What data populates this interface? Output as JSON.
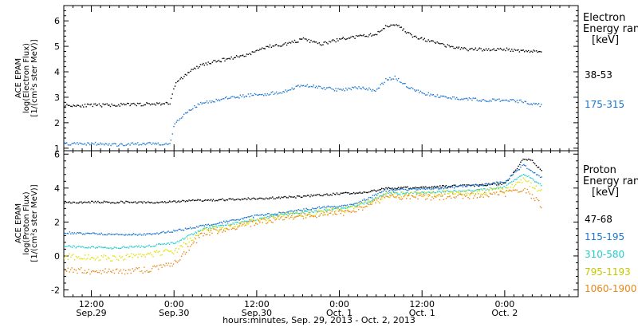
{
  "chart_data": [
    {
      "type": "scatter",
      "panel": "electron",
      "ylabel": [
        "ACE EPAM",
        "log(Electron Flux)",
        "[1/(cm²s ster MeV)]"
      ],
      "ylim": [
        0.9,
        6.6
      ],
      "yticks": [
        1,
        2,
        3,
        4,
        5,
        6
      ],
      "legend_title": [
        "Electron",
        "Energy range",
        "[keV]"
      ],
      "series": [
        {
          "name": "38-53",
          "color": "#000000",
          "points": [
            [
              0,
              2.7
            ],
            [
              6,
              2.7
            ],
            [
              12,
              2.72
            ],
            [
              18,
              2.75
            ],
            [
              23,
              2.78
            ],
            [
              24,
              3.5
            ],
            [
              27,
              4.0
            ],
            [
              30,
              4.3
            ],
            [
              36,
              4.55
            ],
            [
              40,
              4.7
            ],
            [
              44,
              5.0
            ],
            [
              48,
              5.1
            ],
            [
              52,
              5.3
            ],
            [
              56,
              5.1
            ],
            [
              60,
              5.3
            ],
            [
              64,
              5.4
            ],
            [
              68,
              5.5
            ],
            [
              70,
              5.8
            ],
            [
              72,
              5.9
            ],
            [
              76,
              5.4
            ],
            [
              80,
              5.2
            ],
            [
              84,
              5.0
            ],
            [
              88,
              4.9
            ],
            [
              92,
              4.9
            ],
            [
              96,
              4.9
            ],
            [
              100,
              4.85
            ],
            [
              104,
              4.8
            ]
          ]
        },
        {
          "name": "175-315",
          "color": "#1a75d1",
          "points": [
            [
              0,
              1.2
            ],
            [
              6,
              1.2
            ],
            [
              12,
              1.15
            ],
            [
              18,
              1.2
            ],
            [
              23,
              1.2
            ],
            [
              24,
              2.0
            ],
            [
              27,
              2.5
            ],
            [
              30,
              2.8
            ],
            [
              36,
              3.0
            ],
            [
              40,
              3.1
            ],
            [
              44,
              3.15
            ],
            [
              48,
              3.25
            ],
            [
              52,
              3.5
            ],
            [
              56,
              3.4
            ],
            [
              60,
              3.3
            ],
            [
              64,
              3.4
            ],
            [
              68,
              3.3
            ],
            [
              70,
              3.7
            ],
            [
              72,
              3.8
            ],
            [
              76,
              3.3
            ],
            [
              80,
              3.1
            ],
            [
              84,
              3.0
            ],
            [
              88,
              2.95
            ],
            [
              92,
              2.9
            ],
            [
              96,
              2.9
            ],
            [
              100,
              2.85
            ],
            [
              104,
              2.7
            ]
          ]
        }
      ]
    },
    {
      "type": "scatter",
      "panel": "proton",
      "ylabel": [
        "ACE EPAM",
        "log(Proton Flux)",
        "[1/(cm²s ster MeV)]"
      ],
      "ylim": [
        -2.4,
        6.2
      ],
      "yticks": [
        -2,
        0,
        2,
        4,
        6
      ],
      "legend_title": [
        "Proton",
        "Energy range",
        "[keV]"
      ],
      "series": [
        {
          "name": "47-68",
          "color": "#000000",
          "points": [
            [
              0,
              3.2
            ],
            [
              10,
              3.2
            ],
            [
              20,
              3.2
            ],
            [
              30,
              3.3
            ],
            [
              40,
              3.4
            ],
            [
              50,
              3.5
            ],
            [
              60,
              3.7
            ],
            [
              66,
              3.8
            ],
            [
              70,
              4.0
            ],
            [
              80,
              4.1
            ],
            [
              90,
              4.2
            ],
            [
              96,
              4.3
            ],
            [
              98,
              5.0
            ],
            [
              100,
              5.8
            ],
            [
              102,
              5.6
            ],
            [
              104,
              5.0
            ]
          ]
        },
        {
          "name": "115-195",
          "color": "#1a75d1",
          "points": [
            [
              0,
              1.4
            ],
            [
              10,
              1.3
            ],
            [
              18,
              1.3
            ],
            [
              24,
              1.5
            ],
            [
              30,
              1.8
            ],
            [
              36,
              2.1
            ],
            [
              42,
              2.4
            ],
            [
              48,
              2.6
            ],
            [
              56,
              2.9
            ],
            [
              62,
              3.0
            ],
            [
              66,
              3.4
            ],
            [
              70,
              3.9
            ],
            [
              80,
              4.0
            ],
            [
              90,
              4.2
            ],
            [
              96,
              4.4
            ],
            [
              100,
              5.4
            ],
            [
              104,
              4.6
            ]
          ]
        },
        {
          "name": "310-580",
          "color": "#22cccc",
          "points": [
            [
              0,
              0.6
            ],
            [
              10,
              0.5
            ],
            [
              18,
              0.6
            ],
            [
              24,
              0.8
            ],
            [
              30,
              1.6
            ],
            [
              36,
              1.9
            ],
            [
              42,
              2.2
            ],
            [
              48,
              2.5
            ],
            [
              56,
              2.7
            ],
            [
              62,
              2.9
            ],
            [
              66,
              3.2
            ],
            [
              70,
              3.7
            ],
            [
              80,
              3.8
            ],
            [
              90,
              3.9
            ],
            [
              96,
              4.1
            ],
            [
              100,
              4.9
            ],
            [
              104,
              4.2
            ]
          ]
        },
        {
          "name": "795-1193",
          "color": "#e0e000",
          "points": [
            [
              0,
              0.0
            ],
            [
              10,
              -0.1
            ],
            [
              18,
              0.1
            ],
            [
              24,
              0.3
            ],
            [
              30,
              1.5
            ],
            [
              36,
              1.8
            ],
            [
              42,
              2.1
            ],
            [
              48,
              2.4
            ],
            [
              56,
              2.6
            ],
            [
              62,
              2.8
            ],
            [
              66,
              3.1
            ],
            [
              70,
              3.6
            ],
            [
              80,
              3.7
            ],
            [
              90,
              3.8
            ],
            [
              96,
              3.9
            ],
            [
              100,
              4.5
            ],
            [
              104,
              3.8
            ]
          ]
        },
        {
          "name": "1060-1900",
          "color": "#e8871a",
          "points": [
            [
              0,
              -0.8
            ],
            [
              10,
              -0.9
            ],
            [
              18,
              -0.8
            ],
            [
              24,
              -0.4
            ],
            [
              30,
              1.3
            ],
            [
              36,
              1.7
            ],
            [
              42,
              2.0
            ],
            [
              48,
              2.3
            ],
            [
              56,
              2.5
            ],
            [
              62,
              2.6
            ],
            [
              66,
              3.0
            ],
            [
              70,
              3.5
            ],
            [
              80,
              3.5
            ],
            [
              90,
              3.6
            ],
            [
              96,
              3.7
            ],
            [
              100,
              4.0
            ],
            [
              104,
              3.0
            ]
          ]
        }
      ]
    }
  ],
  "x_axis": {
    "xlim": [
      0,
      112
    ],
    "ticks": [
      {
        "x": 6,
        "line1": "12:00",
        "line2": "Sep.29"
      },
      {
        "x": 24,
        "line1": "0:00",
        "line2": "Sep.30"
      },
      {
        "x": 42,
        "line1": "12:00",
        "line2": "Sep.30"
      },
      {
        "x": 60,
        "line1": "0:00",
        "line2": "Oct. 1"
      },
      {
        "x": 78,
        "line1": "12:00",
        "line2": "Oct. 1"
      },
      {
        "x": 96,
        "line1": "0:00",
        "line2": "Oct. 2"
      }
    ],
    "xlabel": "hours:minutes, Sep. 29, 2013 - Oct.  2, 2013"
  }
}
